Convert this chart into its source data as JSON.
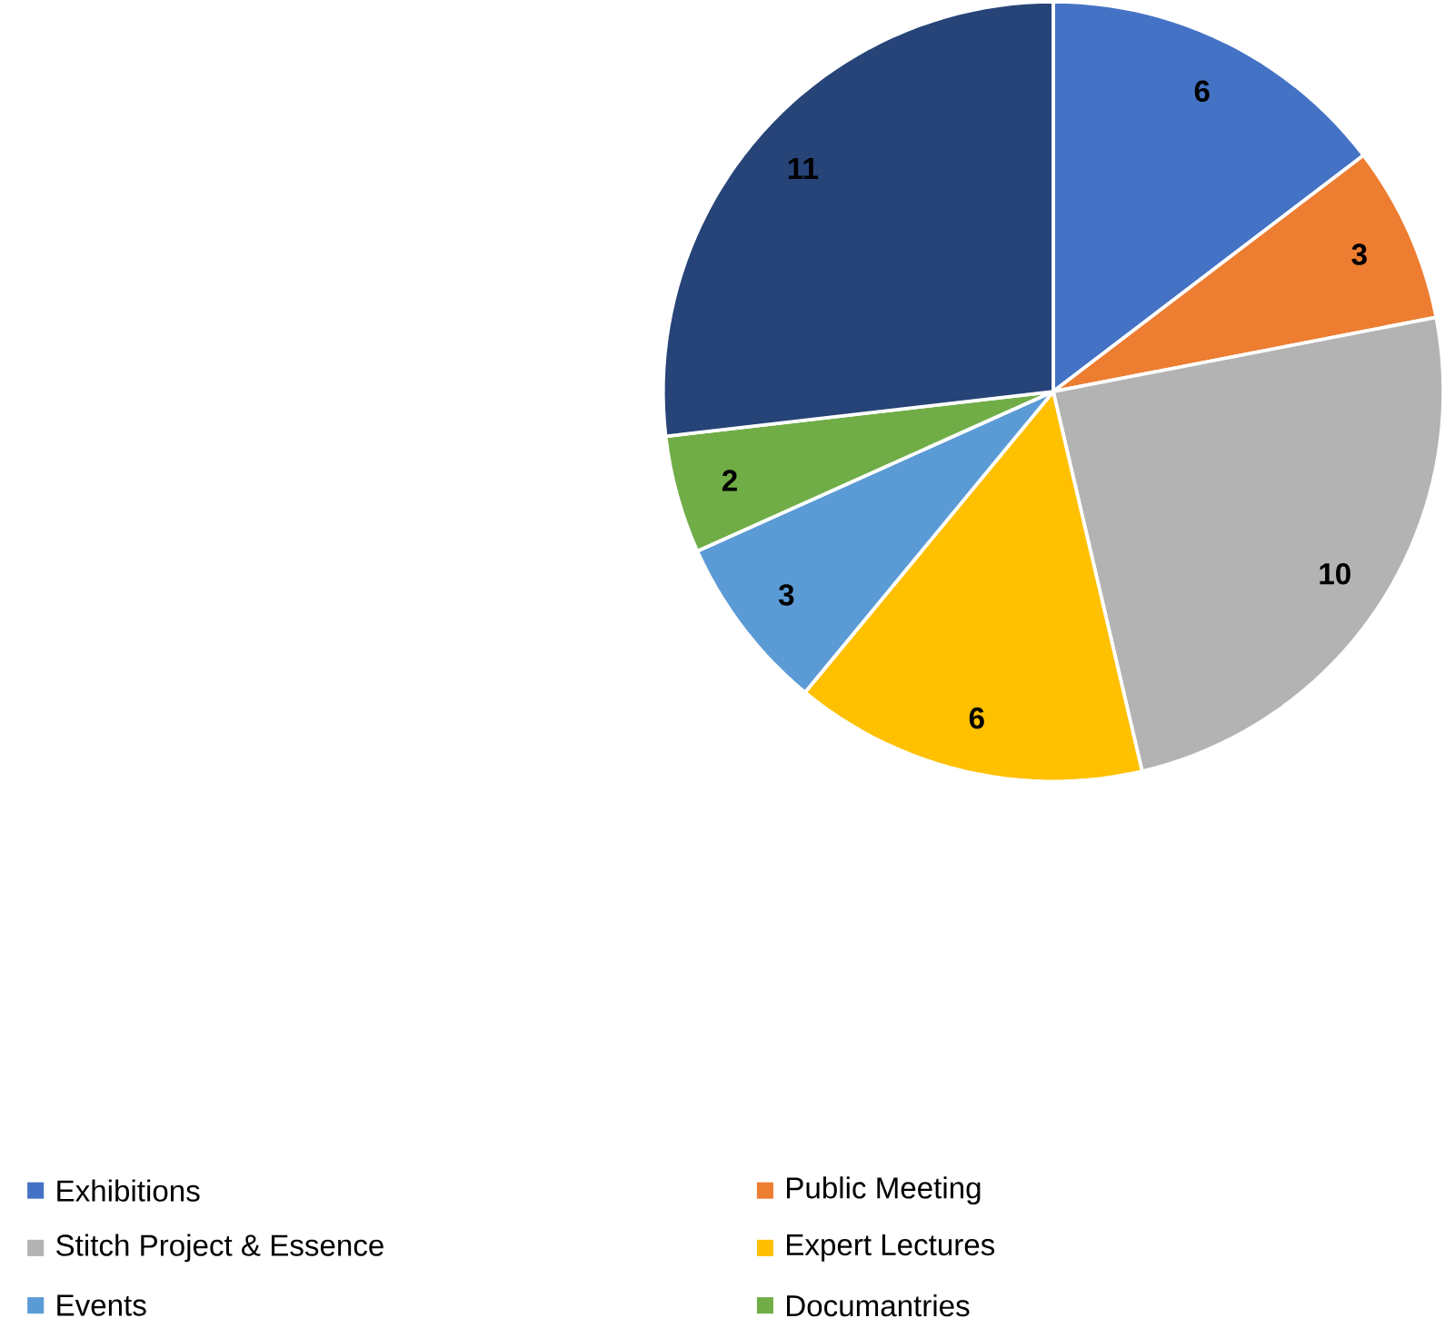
{
  "chart_data": {
    "type": "pie",
    "categories": [
      "Exhibitions",
      "Public Meeting",
      "Stitch Project & Essence",
      "Expert Lectures",
      "Events",
      "Documantries",
      null
    ],
    "values": [
      6,
      3,
      10,
      6,
      3,
      2,
      11
    ],
    "colors": [
      "#4472c4",
      "#ed7d31",
      "#b3b3b3",
      "#ffc000",
      "#5b9bd5",
      "#70ad47",
      "#264478"
    ],
    "data_labels": true,
    "legend": "bottom"
  }
}
